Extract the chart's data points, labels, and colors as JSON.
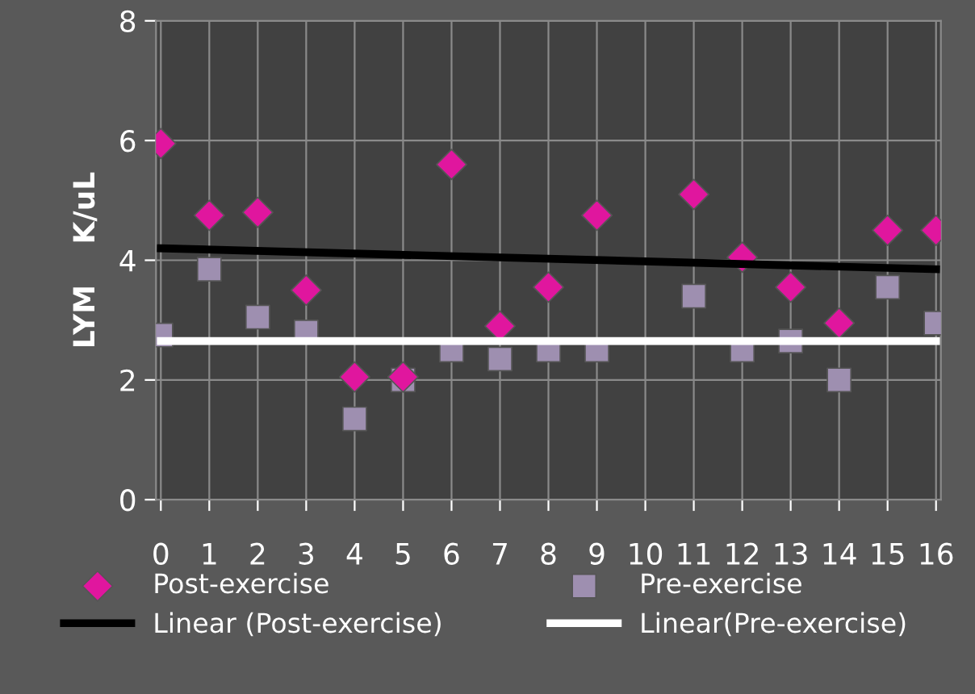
{
  "chart_data": {
    "type": "scatter",
    "ylabel": "LYM    K/uL",
    "xlim": [
      -0.1,
      16.1
    ],
    "xticks": [
      0,
      1,
      2,
      3,
      4,
      5,
      6,
      7,
      8,
      9,
      10,
      11,
      12,
      13,
      14,
      15,
      16
    ],
    "ylim": [
      0,
      8
    ],
    "yticks": [
      0,
      2,
      4,
      6,
      8
    ],
    "grid": true,
    "legend": "bottom",
    "series": [
      {
        "name": "Post-exercise",
        "marker": "diamond",
        "color": "#e0169e",
        "x": [
          0,
          1,
          2,
          3,
          4,
          5,
          6,
          7,
          8,
          9,
          11,
          12,
          13,
          14,
          15,
          16
        ],
        "values": [
          5.95,
          4.75,
          4.8,
          3.5,
          2.05,
          2.05,
          5.6,
          2.9,
          3.55,
          4.75,
          5.1,
          4.05,
          3.55,
          2.95,
          4.5,
          4.5
        ]
      },
      {
        "name": "Pre-exercise",
        "marker": "square",
        "color": "#9e8fb0",
        "x": [
          0,
          1,
          2,
          3,
          4,
          5,
          6,
          7,
          8,
          9,
          11,
          12,
          13,
          14,
          15,
          16
        ],
        "values": [
          2.75,
          3.85,
          3.05,
          2.8,
          1.35,
          2.0,
          2.5,
          2.35,
          2.5,
          2.5,
          3.4,
          2.5,
          2.65,
          2.0,
          3.55,
          2.95
        ]
      },
      {
        "name": "Linear (Post-exercise)",
        "type": "line",
        "line_style": "solid",
        "color": "#000000",
        "x": [
          0,
          16
        ],
        "values": [
          4.2,
          3.85
        ]
      },
      {
        "name": "Linear(Pre-exercise)",
        "type": "line",
        "line_style": "solid",
        "color": "#ffffff",
        "x": [
          0,
          16
        ],
        "values": [
          2.65,
          2.65
        ]
      }
    ]
  }
}
